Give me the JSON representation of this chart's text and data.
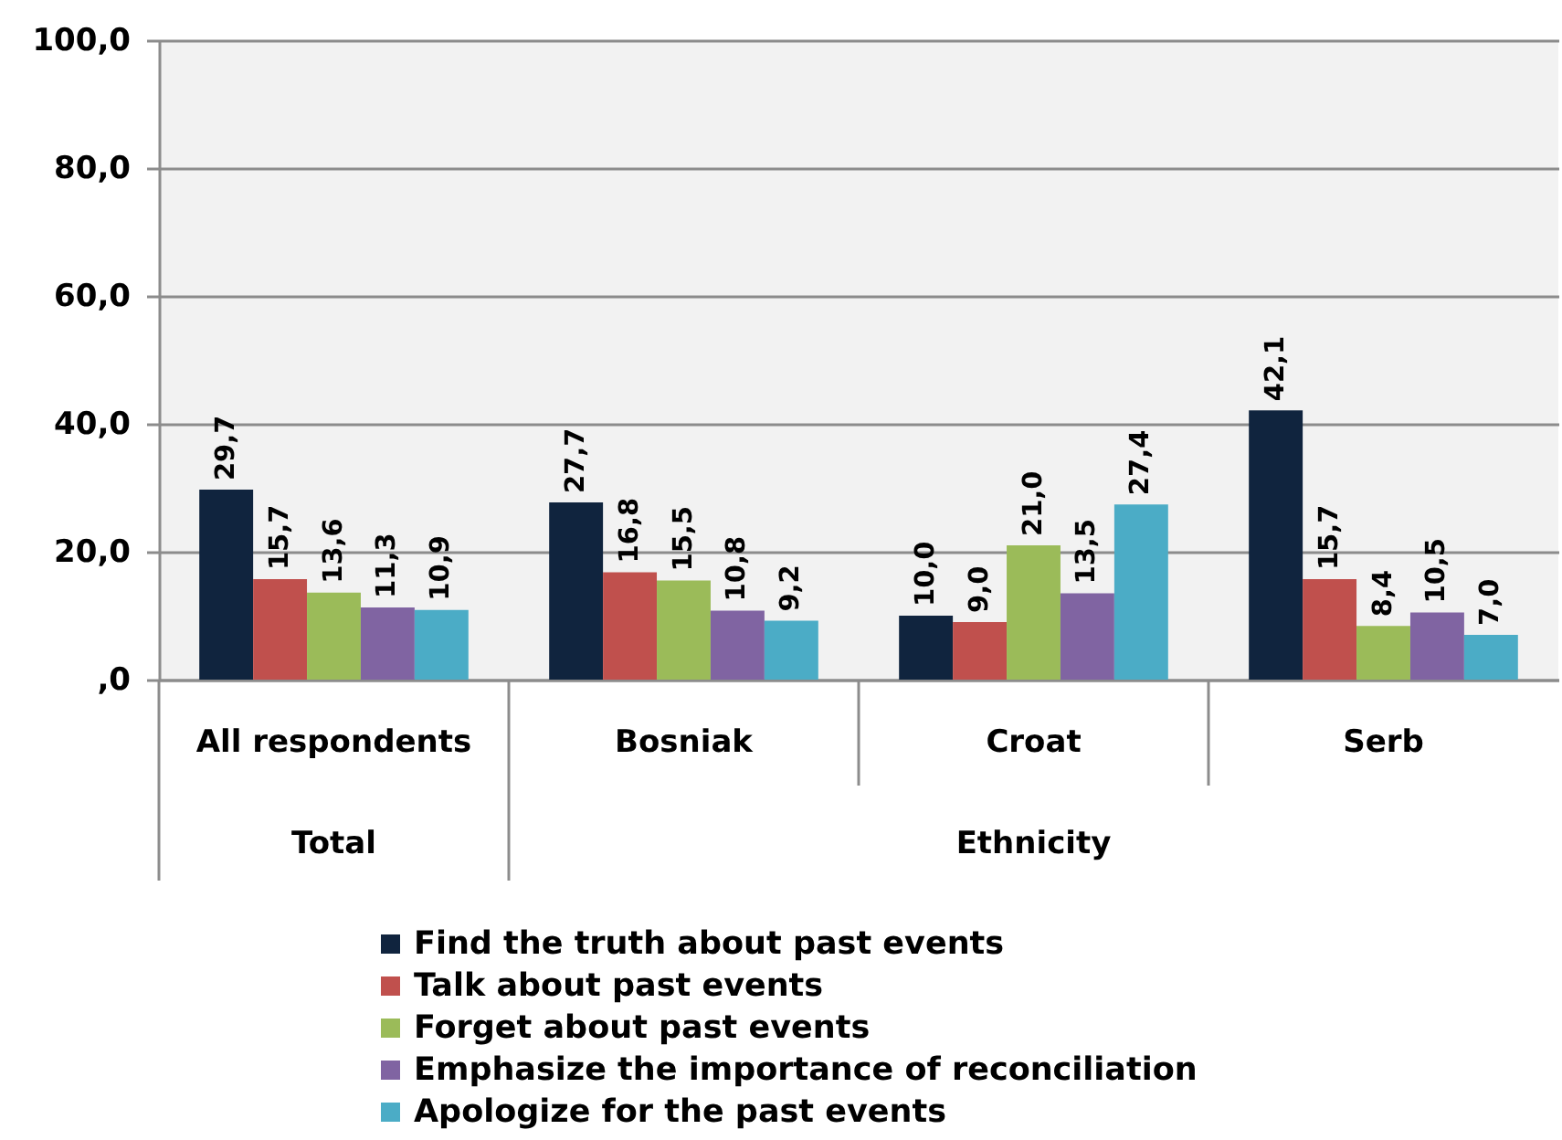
{
  "chart_data": {
    "type": "bar",
    "categories": [
      "All respondents",
      "Bosniak",
      "Croat",
      "Serb"
    ],
    "series": [
      {
        "name": "Find the truth about past events",
        "color": "#10243e",
        "values": [
          29.7,
          27.7,
          10.0,
          42.1
        ],
        "value_labels": [
          "29,7",
          "27,7",
          "10,0",
          "42,1"
        ]
      },
      {
        "name": "Talk about past events",
        "color": "#c0504d",
        "values": [
          15.7,
          16.8,
          9.0,
          15.7
        ],
        "value_labels": [
          "15,7",
          "16,8",
          "9,0",
          "15,7"
        ]
      },
      {
        "name": "Forget about past events",
        "color": "#9bbb59",
        "values": [
          13.6,
          15.5,
          21.0,
          8.4
        ],
        "value_labels": [
          "13,6",
          "15,5",
          "21,0",
          "8,4"
        ]
      },
      {
        "name": "Emphasize the importance of reconciliation",
        "color": "#8064a2",
        "values": [
          11.3,
          10.8,
          13.5,
          10.5
        ],
        "value_labels": [
          "11,3",
          "10,8",
          "13,5",
          "10,5"
        ]
      },
      {
        "name": "Apologize for the past events",
        "color": "#4bacc6",
        "values": [
          10.9,
          9.2,
          27.4,
          7.0
        ],
        "value_labels": [
          "10,9",
          "9,2",
          "27,4",
          "7,0"
        ]
      }
    ],
    "ylim": [
      0,
      100
    ],
    "yticks": [
      {
        "value": 0,
        "label": ",0"
      },
      {
        "value": 20,
        "label": "20,0"
      },
      {
        "value": 40,
        "label": "40,0"
      },
      {
        "value": 60,
        "label": "60,0"
      },
      {
        "value": 80,
        "label": "80,0"
      },
      {
        "value": 100,
        "label": "100,0"
      }
    ],
    "grid": "y",
    "legend": "bottom",
    "annotations": [
      "Total",
      "Ethnicity"
    ]
  }
}
